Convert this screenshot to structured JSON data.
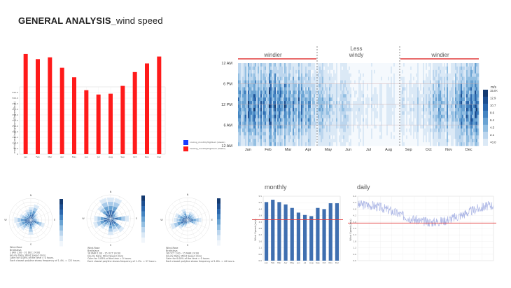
{
  "header": {
    "title_bold": "GENERAL ANALYSIS_",
    "title_rest": "wind speed"
  },
  "colors": {
    "bar_red": "#ff1a1a",
    "accent_red": "#e23b3b",
    "blue_dark": "#1d4f91",
    "blue_light": "#dbe9f6"
  },
  "monthly_bar_chart": {
    "chart_data": {
      "type": "bar",
      "categories": [
        "Jan",
        "Feb",
        "Mar",
        "Apr",
        "May",
        "Jun",
        "Jul",
        "Aug",
        "Sep",
        "Oct",
        "Nov",
        "Dec"
      ],
      "values": [
        580,
        550,
        560,
        500,
        445,
        370,
        345,
        350,
        395,
        475,
        525,
        565
      ],
      "ylim": [
        0,
        600
      ],
      "ylabel": "monthly_heatingHighSum (Degree Days)",
      "yticks": [
        "0",
        "50.0",
        "100.0",
        "150.0",
        "200.0",
        "250.0",
        "300.0",
        "350.0",
        "400.0",
        "450.0",
        "500.0",
        "550.0"
      ],
      "legend": [
        "cooling_monthlyHighSum (Vesbo)",
        "heating_monthlyHighSum (Vesbo)"
      ]
    }
  },
  "heatmap": {
    "band_left": "windier",
    "band_mid_top": "Less",
    "band_mid_bottom": "windy",
    "band_right": "windier",
    "y_labels": [
      "12 AM",
      "6 PM",
      "12 PM",
      "6 AM",
      "12 AM"
    ],
    "x_labels": [
      "Jan",
      "Feb",
      "Mar",
      "Apr",
      "May",
      "Jun",
      "Jul",
      "Aug",
      "Sep",
      "Oct",
      "Nov",
      "Dec"
    ],
    "legend_unit": "m/s",
    "legend_ticks": [
      "15.0<",
      "12.9",
      "10.7",
      "8.6",
      "6.4",
      "4.3",
      "2.1",
      "<0.0"
    ]
  },
  "wind_roses": [
    {
      "l1": "Wind-Rose",
      "l2": "Bratislava",
      "l3": "1 JAN 1:00 - 31 DEC 24:00",
      "l4": "Hourly Data: Wind Speed (m/s)",
      "l5": "Calm for 4.06% of the time = 0 hours.",
      "l6": "Each closest polyline shows frequency of 1.4%. = 122 hours."
    },
    {
      "l1": "Wind-Rose",
      "l2": "Bratislava",
      "l3": "16 MAR 1:00 - 15 OCT 24:00",
      "l4": "Hourly Data: Wind Speed (m/s)",
      "l5": "Calm for 5.85% of the time = 0 hours.",
      "l6": "Each closest polyline shows frequency of 1.1%. = 57 hours."
    },
    {
      "l1": "Wind-Rose",
      "l2": "Bratislava",
      "l3": "16 OCT 1:00 - 15 MAR 24:00",
      "l4": "Hourly Data: Wind Speed (m/s)",
      "l5": "Calm for 0.00% of the time = 0 hours.",
      "l6": "Each closest polyline shows frequency of 1.8%. = 44 hours."
    }
  ],
  "monthly_section": {
    "label": "monthly",
    "chart_data": {
      "type": "bar",
      "categories": [
        "Jan",
        "Feb",
        "Mar",
        "Apr",
        "May",
        "Jun",
        "Jul",
        "Aug",
        "Sep",
        "Oct",
        "Nov",
        "Dec"
      ],
      "values": [
        5.0,
        5.2,
        5.0,
        4.8,
        4.5,
        4.1,
        3.9,
        3.8,
        4.5,
        4.4,
        4.9,
        4.9
      ],
      "ylim": [
        0,
        5.5
      ],
      "threshold": 3.5,
      "ylabel": "Wind Speed (m/s)"
    }
  },
  "daily_section": {
    "label": "daily",
    "chart_data": {
      "type": "line",
      "ylabel": "Wind Speed (m/s)",
      "threshold": 3.5,
      "ylim": [
        0,
        6
      ]
    }
  }
}
